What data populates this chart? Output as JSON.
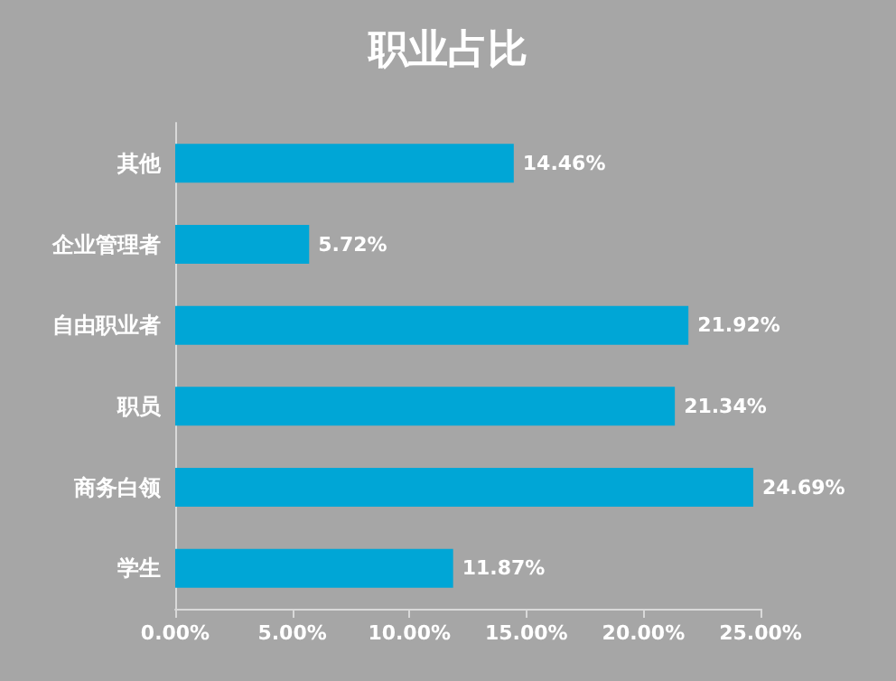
{
  "chart_data": {
    "type": "bar",
    "orientation": "horizontal",
    "title": "职业占比",
    "categories": [
      "其他",
      "企业管理者",
      "自由职业者",
      "职员",
      "商务白领",
      "学生"
    ],
    "values": [
      14.46,
      5.72,
      21.92,
      21.34,
      24.69,
      11.87
    ],
    "value_labels": [
      "14.46%",
      "5.72%",
      "21.92%",
      "21.34%",
      "24.69%",
      "11.87%"
    ],
    "color": "#00a6d6",
    "xlim": [
      0,
      25
    ],
    "xticks": [
      {
        "value": 0,
        "label": "0.00%"
      },
      {
        "value": 5,
        "label": "5.00%"
      },
      {
        "value": 10,
        "label": "10.00%"
      },
      {
        "value": 15,
        "label": "15.00%"
      },
      {
        "value": 20,
        "label": "20.00%"
      },
      {
        "value": 25,
        "label": "25.00%"
      }
    ],
    "grid": false
  }
}
